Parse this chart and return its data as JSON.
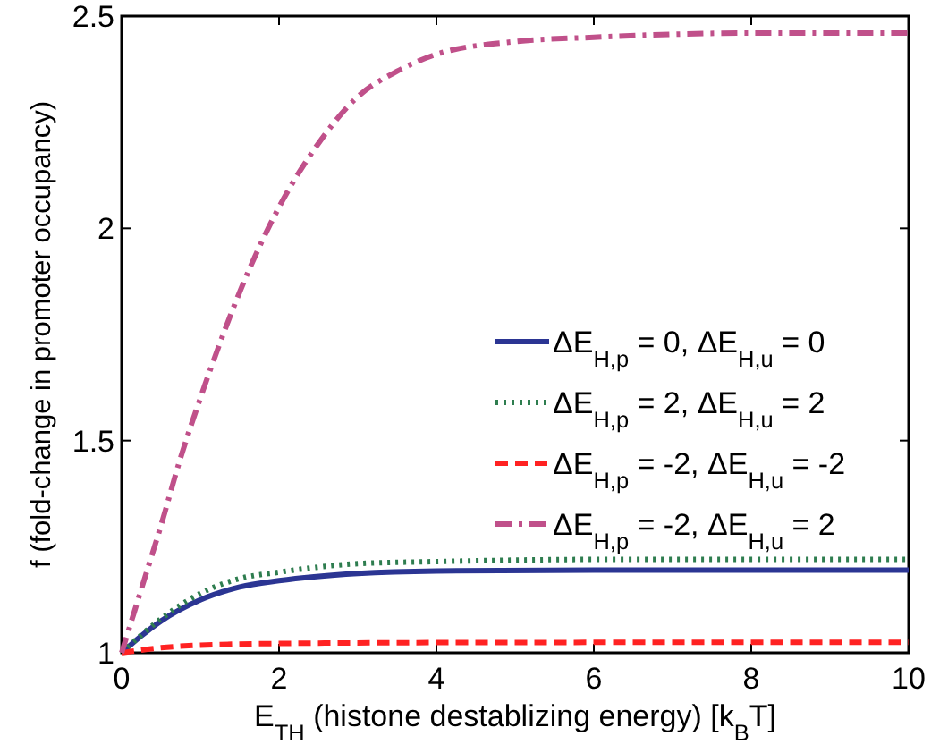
{
  "chart_data": {
    "type": "line",
    "xlabel": "E$_{TH}$ (histone destablizing energy) [k$_{B}$T]",
    "ylabel": "f (fold-change in promoter occupancy)",
    "xlim": [
      0,
      10
    ],
    "ylim": [
      1,
      2.5
    ],
    "xticks": [
      0,
      2,
      4,
      6,
      8,
      10
    ],
    "yticks": [
      1,
      1.5,
      2,
      2.5
    ],
    "grid": false,
    "legend": "right",
    "series": [
      {
        "name": "ΔE$_{H,p}$ = 0, ΔE$_{H,u}$ = 0",
        "color": "#2b3593",
        "line_style": "solid",
        "x": [
          0,
          0.25,
          0.5,
          1,
          1.5,
          2,
          3,
          4,
          6,
          10
        ],
        "values": [
          1,
          1.04,
          1.075,
          1.125,
          1.155,
          1.17,
          1.187,
          1.193,
          1.195,
          1.195
        ]
      },
      {
        "name": "ΔE$_{H,p}$ = 2, ΔE$_{H,u}$ = 2",
        "color": "#2e7d4f",
        "line_style": "dotted",
        "x": [
          0,
          0.5,
          1,
          1.5,
          2,
          3,
          4,
          6,
          10
        ],
        "values": [
          1,
          1.08,
          1.14,
          1.175,
          1.19,
          1.21,
          1.215,
          1.22,
          1.22
        ]
      },
      {
        "name": "ΔE$_{H,p}$ = -2, ΔE$_{H,u}$ = -2",
        "color": "#ff2222",
        "line_style": "dashed",
        "x": [
          0,
          0.5,
          1,
          2,
          4,
          10
        ],
        "values": [
          1,
          1.012,
          1.018,
          1.022,
          1.024,
          1.025
        ]
      },
      {
        "name": "ΔE$_{H,p}$ = -2, ΔE$_{H,u}$ = 2",
        "color": "#c0508a",
        "line_style": "dashdot",
        "x": [
          0,
          0.25,
          0.5,
          0.75,
          1,
          1.25,
          1.5,
          2,
          2.5,
          3,
          3.5,
          4,
          5,
          6,
          8,
          10
        ],
        "values": [
          1,
          1.15,
          1.3,
          1.46,
          1.6,
          1.73,
          1.85,
          2.05,
          2.2,
          2.31,
          2.37,
          2.41,
          2.44,
          2.45,
          2.46,
          2.46
        ]
      }
    ]
  }
}
